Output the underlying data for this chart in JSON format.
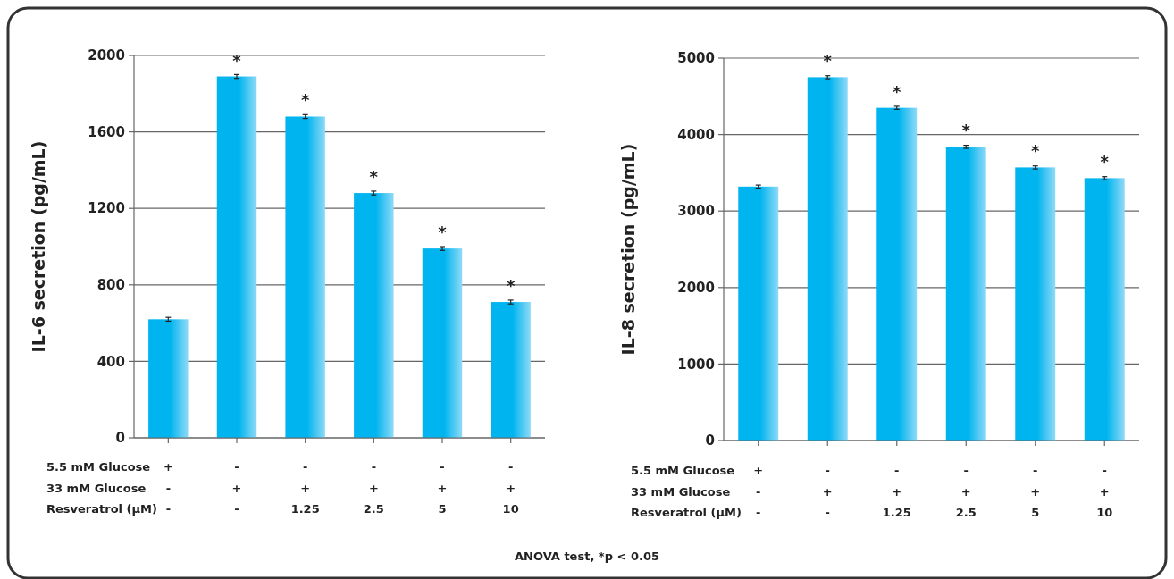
{
  "chart_data": [
    {
      "type": "bar",
      "ylabel": "IL-6 secretion (pg/mL)",
      "categories": [
        "+\n-\n-",
        "-\n+\n-",
        "-\n+\n1.25",
        "-\n+\n2.5",
        "-\n+\n5",
        "-\n+\n10"
      ],
      "values": [
        620,
        1890,
        1680,
        1280,
        990,
        710
      ],
      "errors": [
        10,
        10,
        10,
        10,
        10,
        10
      ],
      "color": "#00b4ef",
      "ylim": [
        0,
        2000
      ],
      "yticks": [
        0,
        400,
        800,
        1200,
        1600,
        2000
      ],
      "grid": "y",
      "annotations": [
        "5.5 mM Glucose",
        "33 mM Glucose",
        "Resveratrol (µM)",
        "ANOVA test, *p < 0.05",
        {
          "text": "*",
          "x": "-\n+\n-",
          "y": 1890
        },
        {
          "text": "*",
          "x": "-\n+\n1.25",
          "y": 1680
        },
        {
          "text": "*",
          "x": "-\n+\n2.5",
          "y": 1280
        },
        {
          "text": "*",
          "x": "-\n+\n5",
          "y": 990
        },
        {
          "text": "*",
          "x": "-\n+\n10",
          "y": 710
        }
      ]
    },
    {
      "type": "bar",
      "ylabel": "IL-8 secretion (pg/mL)",
      "categories": [
        "+\n-\n-",
        "-\n+\n-",
        "-\n+\n1.25",
        "-\n+\n2.5",
        "-\n+\n5",
        "-\n+\n10"
      ],
      "values": [
        3320,
        4750,
        4350,
        3840,
        3570,
        3430
      ],
      "errors": [
        20,
        20,
        20,
        20,
        20,
        20
      ],
      "color": "#00b4ef",
      "ylim": [
        0,
        5000
      ],
      "yticks": [
        0,
        1000,
        2000,
        3000,
        4000,
        5000
      ],
      "grid": "y",
      "annotations": [
        "5.5 mM Glucose",
        "33 mM Glucose",
        "Resveratrol (µM)",
        {
          "text": "*",
          "x": "-\n+\n-",
          "y": 4750
        },
        {
          "text": "*",
          "x": "-\n+\n1.25",
          "y": 4350
        },
        {
          "text": "*",
          "x": "-\n+\n2.5",
          "y": 3840
        },
        {
          "text": "*",
          "x": "-\n+\n5",
          "y": 3570
        },
        {
          "text": "*",
          "x": "-\n+\n10",
          "y": 3430
        }
      ]
    }
  ]
}
